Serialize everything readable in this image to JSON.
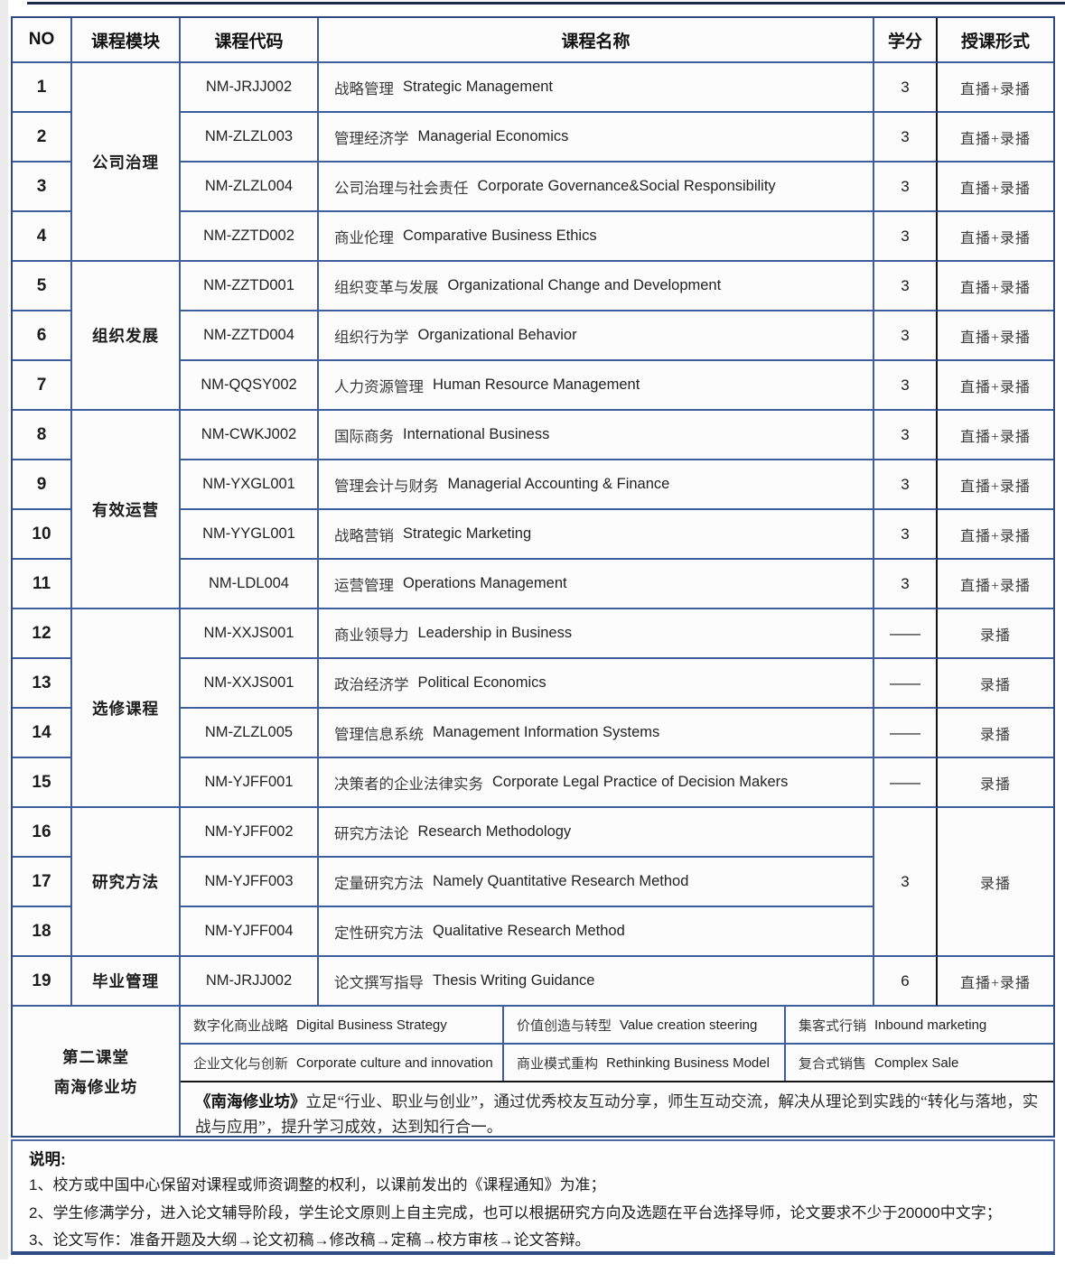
{
  "header": {
    "no": "NO",
    "module": "课程模块",
    "code": "课程代码",
    "name": "课程名称",
    "credits": "学分",
    "format": "授课形式"
  },
  "groups": [
    {
      "module": "公司治理",
      "merged": false,
      "rows": [
        {
          "no": "1",
          "code": "NM-JRJJ002",
          "name_cn": "战略管理",
          "name_en": "Strategic Management",
          "credits": "3",
          "format": "直播+录播"
        },
        {
          "no": "2",
          "code": "NM-ZLZL003",
          "name_cn": "管理经济学",
          "name_en": "Managerial Economics",
          "credits": "3",
          "format": "直播+录播"
        },
        {
          "no": "3",
          "code": "NM-ZLZL004",
          "name_cn": "公司治理与社会责任",
          "name_en": "Corporate Governance&Social Responsibility",
          "credits": "3",
          "format": "直播+录播"
        },
        {
          "no": "4",
          "code": "NM-ZZTD002",
          "name_cn": "商业伦理",
          "name_en": "Comparative Business Ethics",
          "credits": "3",
          "format": "直播+录播"
        }
      ]
    },
    {
      "module": "组织发展",
      "merged": false,
      "rows": [
        {
          "no": "5",
          "code": "NM-ZZTD001",
          "name_cn": "组织变革与发展",
          "name_en": "Organizational Change and Development",
          "credits": "3",
          "format": "直播+录播"
        },
        {
          "no": "6",
          "code": "NM-ZZTD004",
          "name_cn": "组织行为学",
          "name_en": "Organizational Behavior",
          "credits": "3",
          "format": "直播+录播"
        },
        {
          "no": "7",
          "code": "NM-QQSY002",
          "name_cn": "人力资源管理",
          "name_en": "Human Resource Management",
          "credits": "3",
          "format": "直播+录播"
        }
      ]
    },
    {
      "module": "有效运营",
      "merged": false,
      "rows": [
        {
          "no": "8",
          "code": "NM-CWKJ002",
          "name_cn": "国际商务",
          "name_en": "International Business",
          "credits": "3",
          "format": "直播+录播"
        },
        {
          "no": "9",
          "code": "NM-YXGL001",
          "name_cn": "管理会计与财务",
          "name_en": "Managerial Accounting & Finance",
          "credits": "3",
          "format": "直播+录播"
        },
        {
          "no": "10",
          "code": "NM-YYGL001",
          "name_cn": "战略营销",
          "name_en": "Strategic Marketing",
          "credits": "3",
          "format": "直播+录播"
        },
        {
          "no": "11",
          "code": "NM-LDL004",
          "name_cn": "运营管理",
          "name_en": "Operations Management",
          "credits": "3",
          "format": "直播+录播"
        }
      ]
    },
    {
      "module": "选修课程",
      "merged": false,
      "rows": [
        {
          "no": "12",
          "code": "NM-XXJS001",
          "name_cn": "商业领导力",
          "name_en": "Leadership in Business",
          "credits": "——",
          "format": "录播"
        },
        {
          "no": "13",
          "code": "NM-XXJS001",
          "name_cn": "政治经济学",
          "name_en": "Political Economics",
          "credits": "——",
          "format": "录播"
        },
        {
          "no": "14",
          "code": "NM-ZLZL005",
          "name_cn": "管理信息系统",
          "name_en": "Management Information Systems",
          "credits": "——",
          "format": "录播"
        },
        {
          "no": "15",
          "code": "NM-YJFF001",
          "name_cn": "决策者的企业法律实务",
          "name_en": "Corporate Legal Practice of Decision Makers",
          "credits": "——",
          "format": "录播"
        }
      ]
    },
    {
      "module": "研究方法",
      "merged": true,
      "merged_credits": "3",
      "merged_format": "录播",
      "rows": [
        {
          "no": "16",
          "code": "NM-YJFF002",
          "name_cn": "研究方法论",
          "name_en": "Research Methodology"
        },
        {
          "no": "17",
          "code": "NM-YJFF003",
          "name_cn": "定量研究方法",
          "name_en": "Namely Quantitative Research Method"
        },
        {
          "no": "18",
          "code": "NM-YJFF004",
          "name_cn": "定性研究方法",
          "name_en": "Qualitative Research Method"
        }
      ]
    },
    {
      "module": "毕业管理",
      "merged": false,
      "rows": [
        {
          "no": "19",
          "code": "NM-JRJJ002",
          "name_cn": "论文撰写指导",
          "name_en": "Thesis Writing Guidance",
          "credits": "6",
          "format": "直播+录播"
        }
      ]
    }
  ],
  "second_classroom": {
    "title_line1": "第二课堂",
    "title_line2": "南海修业坊",
    "rows": [
      [
        {
          "cn": "数字化商业战略",
          "en": "Digital Business Strategy"
        },
        {
          "cn": "价值创造与转型",
          "en": "Value creation steering"
        },
        {
          "cn": "集客式行销",
          "en": "Inbound marketing"
        }
      ],
      [
        {
          "cn": "企业文化与创新",
          "en": "Corporate culture and innovation"
        },
        {
          "cn": "商业模式重构",
          "en": "Rethinking Business Model"
        },
        {
          "cn": "复合式销售",
          "en": "Complex Sale"
        }
      ]
    ],
    "description_bold": "《南海修业坊》",
    "description_text": "立足“行业、职业与创业”，通过优秀校友互动分享，师生互动交流，解决从理论到实践的“转化与落地，实战与应用”，提升学习成效，达到知行合一。"
  },
  "notes": {
    "title": "说明:",
    "items": [
      "1、校方或中国中心保留对课程或师资调整的权利，以课前发出的《课程通知》为准；",
      "2、学生修满学分，进入论文辅导阶段，学生论文原则上自主完成，也可以根据研究方向及选题在平台选择导师，论文要求不少于20000中文字；",
      "3、论文写作：准备开题及大纲→论文初稿→修改稿→定稿→校方审核→论文答辩。"
    ]
  },
  "colors": {
    "border_blue": "#3f5c9c",
    "border_blue_dark": "#2e4a82",
    "divider_black": "#141414",
    "top_line_navy": "#1c2a4a"
  }
}
